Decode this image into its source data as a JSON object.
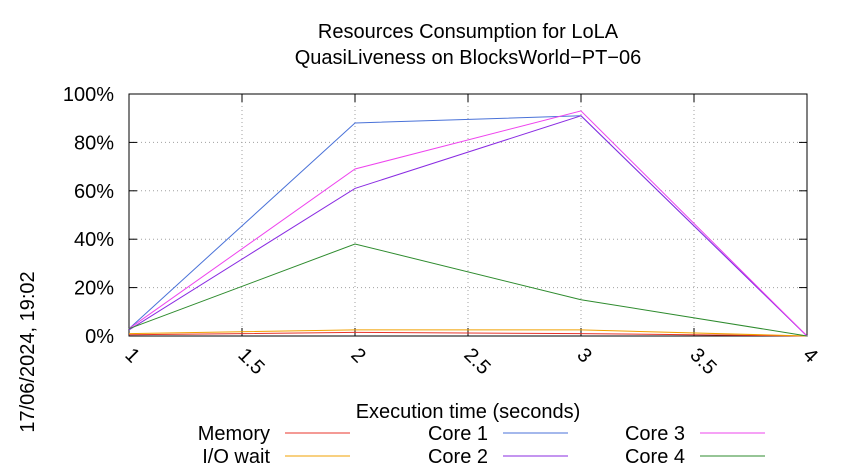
{
  "chart_data": {
    "type": "line",
    "title": "Resources Consumption for LoLA",
    "subtitle": "QuasiLiveness on BlocksWorld−PT−06",
    "xlabel": "Execution time (seconds)",
    "ylabel": "",
    "side_label": "17/06/2024, 19:02",
    "xlim": [
      1,
      4
    ],
    "ylim": [
      0,
      100
    ],
    "x_ticks": [
      {
        "value": 1,
        "label": "1"
      },
      {
        "value": 1.5,
        "label": "1.5"
      },
      {
        "value": 2,
        "label": "2"
      },
      {
        "value": 2.5,
        "label": "2.5"
      },
      {
        "value": 3,
        "label": "3"
      },
      {
        "value": 3.5,
        "label": "3.5"
      },
      {
        "value": 4,
        "label": "4"
      }
    ],
    "y_ticks": [
      {
        "value": 0,
        "label": "0%"
      },
      {
        "value": 20,
        "label": "20%"
      },
      {
        "value": 40,
        "label": "40%"
      },
      {
        "value": 60,
        "label": "60%"
      },
      {
        "value": 80,
        "label": "80%"
      },
      {
        "value": 100,
        "label": "100%"
      }
    ],
    "grid": true,
    "legend_position": "bottom",
    "x": [
      1,
      2,
      3,
      4
    ],
    "series": [
      {
        "name": "Memory",
        "color": "#e8352b",
        "values": [
          0.5,
          1.5,
          1.0,
          0
        ]
      },
      {
        "name": "I/O wait",
        "color": "#f0a000",
        "values": [
          1.0,
          2.5,
          2.5,
          0
        ]
      },
      {
        "name": "Core 1",
        "color": "#4a72d8",
        "values": [
          3,
          88,
          91,
          0
        ]
      },
      {
        "name": "Core 2",
        "color": "#8a2be2",
        "values": [
          2.5,
          61,
          91,
          0
        ]
      },
      {
        "name": "Core 3",
        "color": "#ee44ee",
        "values": [
          3,
          69,
          93,
          0
        ]
      },
      {
        "name": "Core 4",
        "color": "#2e8b2e",
        "values": [
          3,
          38,
          15,
          0
        ]
      }
    ]
  }
}
